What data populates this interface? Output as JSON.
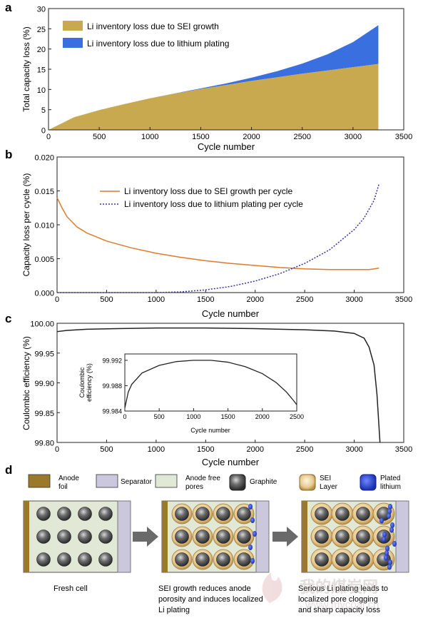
{
  "panel_letters": [
    "a",
    "b",
    "c",
    "d"
  ],
  "chart_data": [
    {
      "panel": "a",
      "type": "area",
      "xlabel": "Cycle number",
      "ylabel": "Total capacity loss (%)",
      "xlim": [
        0,
        3500
      ],
      "ylim": [
        0,
        30
      ],
      "xticks": [
        0,
        500,
        1000,
        1500,
        2000,
        2500,
        3000,
        3500
      ],
      "yticks": [
        0,
        5,
        10,
        15,
        20,
        25,
        30
      ],
      "legend_position": "top-left",
      "stacked": true,
      "x": [
        0,
        250,
        500,
        750,
        1000,
        1250,
        1500,
        1750,
        2000,
        2250,
        2500,
        2750,
        3000,
        3250
      ],
      "series": [
        {
          "name": "Li inventory loss due to SEI growth",
          "color": "#c9a94f",
          "values": [
            0,
            3.1,
            4.9,
            6.4,
            7.8,
            9.0,
            10.1,
            11.1,
            12.1,
            13.0,
            13.9,
            14.7,
            15.5,
            16.3
          ]
        },
        {
          "name": "Li inventory loss due to lithium plating",
          "color": "#3a6fe0",
          "values": [
            0,
            0,
            0,
            0,
            0,
            0.05,
            0.15,
            0.4,
            0.8,
            1.5,
            2.5,
            4.0,
            6.2,
            9.6
          ]
        }
      ]
    },
    {
      "panel": "b",
      "type": "line",
      "xlabel": "Cycle number",
      "ylabel": "Capacity loss per cycle (%)",
      "xlim": [
        0,
        3500
      ],
      "ylim": [
        0,
        0.02
      ],
      "xticks": [
        0,
        500,
        1000,
        1500,
        2000,
        2500,
        3000,
        3500
      ],
      "yticks": [
        "0.000",
        "0.005",
        "0.010",
        "0.015",
        "0.020"
      ],
      "legend_position": "top-center",
      "series": [
        {
          "name": "Li inventory loss due to SEI growth per cycle",
          "color": "#e07a2a",
          "style": "solid",
          "x": [
            0,
            50,
            100,
            200,
            300,
            500,
            750,
            1000,
            1250,
            1500,
            1750,
            2000,
            2250,
            2500,
            2750,
            3000,
            3150,
            3250
          ],
          "values": [
            0.014,
            0.0125,
            0.0112,
            0.0097,
            0.0088,
            0.0076,
            0.0066,
            0.0058,
            0.0052,
            0.0047,
            0.0043,
            0.004,
            0.0037,
            0.0035,
            0.0034,
            0.0034,
            0.0034,
            0.0036
          ]
        },
        {
          "name": "Li inventory loss due to lithium plating per cycle",
          "color": "#3333aa",
          "style": "dotted",
          "x": [
            0,
            1000,
            1250,
            1500,
            1750,
            2000,
            2250,
            2500,
            2750,
            3000,
            3100,
            3200,
            3250
          ],
          "values": [
            0,
            0,
            0.0001,
            0.0004,
            0.0009,
            0.0017,
            0.0028,
            0.0043,
            0.0063,
            0.0093,
            0.011,
            0.0136,
            0.016
          ]
        }
      ]
    },
    {
      "panel": "c",
      "type": "line",
      "xlabel": "Cycle number",
      "ylabel": "Coulombic efficiency (%)",
      "xlim": [
        0,
        3500
      ],
      "ylim": [
        99.8,
        100.0
      ],
      "xticks": [
        0,
        500,
        1000,
        1500,
        2000,
        2500,
        3000,
        3500
      ],
      "yticks": [
        "99.80",
        "99.85",
        "99.90",
        "99.95",
        "100.00"
      ],
      "series": [
        {
          "color": "#222222",
          "x": [
            0,
            100,
            300,
            600,
            1000,
            1500,
            2000,
            2500,
            2800,
            3000,
            3100,
            3150,
            3200,
            3230,
            3260
          ],
          "values": [
            99.986,
            99.988,
            99.99,
            99.991,
            99.992,
            99.992,
            99.991,
            99.989,
            99.987,
            99.983,
            99.975,
            99.96,
            99.93,
            99.88,
            99.8
          ]
        }
      ],
      "inset": {
        "xlabel": "Cycle number",
        "ylabel": "Coulombic efficiency (%)",
        "xlim": [
          0,
          2500
        ],
        "ylim": [
          99.984,
          99.993
        ],
        "xticks": [
          0,
          500,
          1000,
          1500,
          2000,
          2500
        ],
        "yticks": [
          "99.984",
          "99.988",
          "99.992"
        ],
        "x": [
          0,
          50,
          100,
          250,
          500,
          750,
          1000,
          1250,
          1500,
          1750,
          2000,
          2200,
          2350,
          2450,
          2500
        ],
        "values": [
          99.9845,
          99.987,
          99.9882,
          99.99,
          99.9912,
          99.9918,
          99.992,
          99.992,
          99.9917,
          99.991,
          99.9899,
          99.9885,
          99.987,
          99.9857,
          99.985
        ]
      }
    }
  ],
  "diagram_d": {
    "legend": [
      {
        "label": "Anode\nfoil",
        "color": "#9a7a2a"
      },
      {
        "label": "Separator",
        "color": "#cbc8dd"
      },
      {
        "label": "Anode free\npores",
        "color": "#e2e8d6"
      },
      {
        "label": "Graphite",
        "color": "#555555"
      },
      {
        "label": "SEI\nLayer",
        "color": "#e6c98f"
      },
      {
        "label": "Plated\nlithium",
        "color": "#2038c8"
      }
    ],
    "captions": [
      "Fresh cell",
      "SEI growth reduces anode\nporosity and induces localized\nLi plating",
      "Serious Li plating leads to\nlocalized pore clogging\nand sharp capacity loss"
    ]
  },
  "watermark": {
    "text": "我的煤炭网",
    "url": "www.mycoal.cn"
  }
}
